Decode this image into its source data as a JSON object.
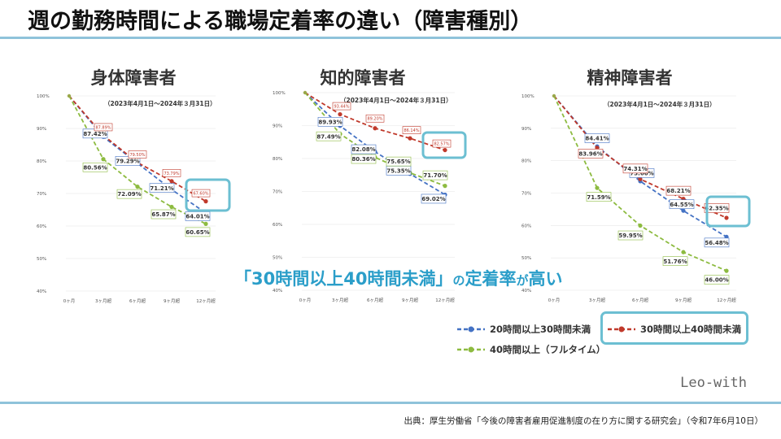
{
  "page": {
    "title": "週の勤務時間による職場定着率の違い（障害種別）",
    "callout_part1": "「30時間以上40時間未満」",
    "callout_part2": "の",
    "callout_part3": "定着率",
    "callout_part4": "が",
    "callout_part5": "高い",
    "brand": "Leo-with",
    "source": "出典：厚生労働省「今後の障害者雇用促進制度の在り方に関する研究会」（令和7年6月10日）",
    "highlight_color": "#6cbfd2"
  },
  "legend": [
    {
      "label": "20時間以上30時間未満",
      "color": "#4472c4"
    },
    {
      "label": "30時間以上40時間未満",
      "color": "#c0392b"
    },
    {
      "label": "40時間以上（フルタイム）",
      "color": "#8dbb40"
    }
  ],
  "chart_data": [
    {
      "type": "line",
      "title": "身体障害者",
      "period": "（2023年4月1日～2024年３月31日）",
      "categories": [
        "0ヶ月",
        "3ヶ月超",
        "6ヶ月超",
        "9ヶ月超",
        "12ヶ月超"
      ],
      "yticks": [
        "100%",
        "90%",
        "80%",
        "70%",
        "60%",
        "50%",
        "40%"
      ],
      "ylim": [
        40,
        100
      ],
      "highlight_series": 1,
      "series": [
        {
          "name": "20時間以上30時間未満",
          "color": "#4472c4",
          "values": [
            100,
            87.42,
            79.29,
            71.21,
            64.01
          ]
        },
        {
          "name": "30時間以上40時間未満",
          "color": "#c0392b",
          "values": [
            100,
            87.89,
            79.5,
            73.79,
            67.6
          ]
        },
        {
          "name": "40時間以上（フルタイム）",
          "color": "#8dbb40",
          "values": [
            100,
            80.56,
            72.09,
            65.87,
            60.65
          ]
        }
      ],
      "labels": [
        [
          "",
          "87.42%",
          "79.29%",
          "71.21%",
          "64.01%"
        ],
        [
          "",
          "87.89%",
          "79.50%",
          "73.79%",
          "67.60%"
        ],
        [
          "",
          "80.56%",
          "72.09%",
          "65.87%",
          "60.65%"
        ]
      ]
    },
    {
      "type": "line",
      "title": "知的障害者",
      "period": "（2023年4月1日～2024年３月31日）",
      "categories": [
        "0ヶ月",
        "3ヶ月超",
        "6ヶ月超",
        "9ヶ月超",
        "12ヶ月超"
      ],
      "yticks": [
        "100%",
        "90%",
        "80%",
        "70%",
        "60%",
        "50%",
        "40%"
      ],
      "ylim": [
        40,
        100
      ],
      "highlight_series": 1,
      "series": [
        {
          "name": "20時間以上30時間未満",
          "color": "#4472c4",
          "values": [
            100,
            89.93,
            82.08,
            75.35,
            69.02
          ]
        },
        {
          "name": "30時間以上40時間未満",
          "color": "#c0392b",
          "values": [
            100,
            93.44,
            89.2,
            86.14,
            82.57
          ]
        },
        {
          "name": "40時間以上（フルタイム）",
          "color": "#8dbb40",
          "values": [
            100,
            87.49,
            80.36,
            75.65,
            71.7
          ]
        }
      ],
      "labels": [
        [
          "",
          "89.93%",
          "82.08%",
          "75.35%",
          "69.02%"
        ],
        [
          "",
          "93.44%",
          "89.20%",
          "86.14%",
          "82.57%"
        ],
        [
          "",
          "87.49%",
          "80.36%",
          "75.65%",
          "71.70%"
        ]
      ]
    },
    {
      "type": "line",
      "title": "精神障害者",
      "period": "（2023年4月1日～2024年３月31日）",
      "categories": [
        "0ヶ月",
        "3ヶ月超",
        "6ヶ月超",
        "9ヶ月超",
        "12ヶ月超"
      ],
      "yticks": [
        "100%",
        "90%",
        "80%",
        "70%",
        "60%",
        "50%",
        "40%"
      ],
      "ylim": [
        40,
        100
      ],
      "highlight_series": 1,
      "series": [
        {
          "name": "20時間以上30時間未満",
          "color": "#4472c4",
          "values": [
            100,
            84.41,
            73.66,
            64.55,
            56.48
          ]
        },
        {
          "name": "30時間以上40時間未満",
          "color": "#c0392b",
          "values": [
            100,
            83.96,
            74.31,
            68.21,
            62.35
          ]
        },
        {
          "name": "40時間以上（フルタイム）",
          "color": "#8dbb40",
          "values": [
            100,
            71.59,
            59.95,
            51.76,
            46.0
          ]
        }
      ],
      "labels": [
        [
          "",
          "84.41%",
          "73.66%",
          "64.55%",
          "56.48%"
        ],
        [
          "",
          "83.96%",
          "74.31%",
          "68.21%",
          "62.35%"
        ],
        [
          "",
          "71.59%",
          "59.95%",
          "51.76%",
          "46.00%"
        ]
      ]
    }
  ]
}
